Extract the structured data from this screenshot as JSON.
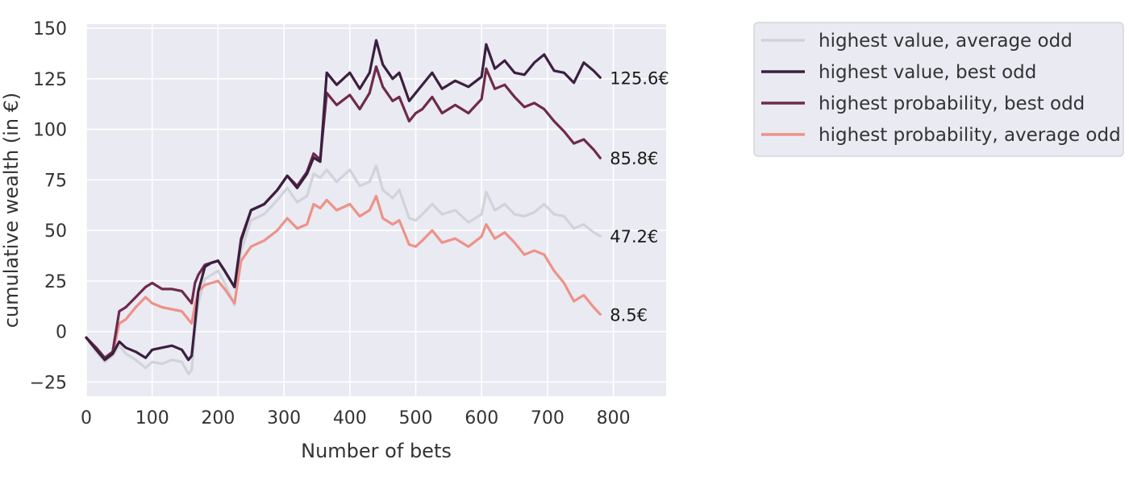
{
  "chart_data": {
    "type": "line",
    "xlabel": "Number of bets",
    "ylabel": "cumulative wealth (in €)",
    "xlim": [
      0,
      880
    ],
    "ylim": [
      -32,
      152
    ],
    "xticks": [
      "0",
      "100",
      "200",
      "300",
      "400",
      "500",
      "600",
      "700",
      "800"
    ],
    "yticks": [
      "−25",
      "0",
      "25",
      "50",
      "75",
      "100",
      "125",
      "150"
    ],
    "grid": true,
    "background": "#eaeaf2",
    "legend_position": "right",
    "series": [
      {
        "name": "highest value, average odd",
        "color": "#d2d3da",
        "end_label": "47.2€",
        "points": [
          [
            0,
            -3
          ],
          [
            15,
            -10
          ],
          [
            28,
            -15
          ],
          [
            40,
            -12
          ],
          [
            50,
            -7
          ],
          [
            60,
            -11
          ],
          [
            75,
            -14
          ],
          [
            90,
            -18
          ],
          [
            100,
            -15
          ],
          [
            115,
            -16
          ],
          [
            130,
            -14
          ],
          [
            145,
            -15
          ],
          [
            155,
            -21
          ],
          [
            160,
            -19
          ],
          [
            165,
            0
          ],
          [
            170,
            14
          ],
          [
            180,
            26
          ],
          [
            190,
            28
          ],
          [
            200,
            30
          ],
          [
            210,
            24
          ],
          [
            225,
            13
          ],
          [
            235,
            40
          ],
          [
            250,
            55
          ],
          [
            270,
            58
          ],
          [
            290,
            65
          ],
          [
            305,
            71
          ],
          [
            320,
            64
          ],
          [
            335,
            67
          ],
          [
            345,
            78
          ],
          [
            355,
            76
          ],
          [
            365,
            80
          ],
          [
            380,
            74
          ],
          [
            400,
            80
          ],
          [
            415,
            72
          ],
          [
            430,
            74
          ],
          [
            440,
            82
          ],
          [
            450,
            70
          ],
          [
            465,
            66
          ],
          [
            475,
            70
          ],
          [
            490,
            56
          ],
          [
            500,
            55
          ],
          [
            510,
            58
          ],
          [
            525,
            63
          ],
          [
            540,
            58
          ],
          [
            560,
            60
          ],
          [
            580,
            54
          ],
          [
            600,
            58
          ],
          [
            607,
            69
          ],
          [
            620,
            60
          ],
          [
            635,
            63
          ],
          [
            650,
            58
          ],
          [
            665,
            57
          ],
          [
            680,
            59
          ],
          [
            695,
            63
          ],
          [
            710,
            58
          ],
          [
            725,
            57
          ],
          [
            740,
            51
          ],
          [
            755,
            53
          ],
          [
            770,
            49
          ],
          [
            780,
            47.2
          ]
        ]
      },
      {
        "name": "highest value, best odd",
        "color": "#3b1f3f",
        "end_label": "125.6€",
        "points": [
          [
            0,
            -3
          ],
          [
            15,
            -9
          ],
          [
            28,
            -14
          ],
          [
            40,
            -11
          ],
          [
            50,
            -5
          ],
          [
            60,
            -8
          ],
          [
            75,
            -10
          ],
          [
            90,
            -13
          ],
          [
            100,
            -9
          ],
          [
            115,
            -8
          ],
          [
            130,
            -7
          ],
          [
            145,
            -9
          ],
          [
            155,
            -14
          ],
          [
            160,
            -12
          ],
          [
            165,
            4
          ],
          [
            170,
            20
          ],
          [
            180,
            32
          ],
          [
            190,
            34
          ],
          [
            200,
            35
          ],
          [
            210,
            30
          ],
          [
            225,
            22
          ],
          [
            235,
            45
          ],
          [
            250,
            60
          ],
          [
            270,
            63
          ],
          [
            290,
            70
          ],
          [
            305,
            77
          ],
          [
            320,
            71
          ],
          [
            335,
            78
          ],
          [
            345,
            86
          ],
          [
            355,
            84
          ],
          [
            365,
            128
          ],
          [
            380,
            122
          ],
          [
            400,
            128
          ],
          [
            415,
            120
          ],
          [
            430,
            128
          ],
          [
            440,
            144
          ],
          [
            450,
            132
          ],
          [
            465,
            125
          ],
          [
            475,
            128
          ],
          [
            490,
            114
          ],
          [
            500,
            118
          ],
          [
            510,
            122
          ],
          [
            525,
            128
          ],
          [
            540,
            120
          ],
          [
            560,
            124
          ],
          [
            580,
            121
          ],
          [
            600,
            126
          ],
          [
            607,
            142
          ],
          [
            620,
            130
          ],
          [
            635,
            134
          ],
          [
            650,
            128
          ],
          [
            665,
            127
          ],
          [
            680,
            133
          ],
          [
            695,
            137
          ],
          [
            710,
            129
          ],
          [
            725,
            128
          ],
          [
            740,
            123
          ],
          [
            755,
            133
          ],
          [
            770,
            129
          ],
          [
            780,
            125.6
          ]
        ]
      },
      {
        "name": "highest probability, best odd",
        "color": "#6e2a4d",
        "end_label": "85.8€",
        "points": [
          [
            0,
            -3
          ],
          [
            15,
            -8
          ],
          [
            28,
            -13
          ],
          [
            40,
            -10
          ],
          [
            50,
            10
          ],
          [
            60,
            12
          ],
          [
            75,
            17
          ],
          [
            90,
            22
          ],
          [
            100,
            24
          ],
          [
            115,
            21
          ],
          [
            130,
            21
          ],
          [
            145,
            20
          ],
          [
            155,
            16
          ],
          [
            160,
            14
          ],
          [
            165,
            24
          ],
          [
            170,
            28
          ],
          [
            180,
            33
          ],
          [
            190,
            34
          ],
          [
            200,
            35
          ],
          [
            210,
            30
          ],
          [
            225,
            22
          ],
          [
            235,
            46
          ],
          [
            250,
            60
          ],
          [
            270,
            63
          ],
          [
            290,
            70
          ],
          [
            305,
            77
          ],
          [
            320,
            72
          ],
          [
            335,
            79
          ],
          [
            345,
            88
          ],
          [
            355,
            85
          ],
          [
            365,
            118
          ],
          [
            380,
            112
          ],
          [
            400,
            117
          ],
          [
            415,
            110
          ],
          [
            430,
            118
          ],
          [
            440,
            131
          ],
          [
            450,
            121
          ],
          [
            465,
            114
          ],
          [
            475,
            116
          ],
          [
            490,
            104
          ],
          [
            500,
            108
          ],
          [
            510,
            110
          ],
          [
            525,
            116
          ],
          [
            540,
            108
          ],
          [
            560,
            112
          ],
          [
            580,
            108
          ],
          [
            600,
            115
          ],
          [
            607,
            130
          ],
          [
            620,
            120
          ],
          [
            635,
            122
          ],
          [
            650,
            116
          ],
          [
            665,
            111
          ],
          [
            680,
            113
          ],
          [
            695,
            110
          ],
          [
            710,
            104
          ],
          [
            725,
            99
          ],
          [
            740,
            93
          ],
          [
            755,
            95
          ],
          [
            770,
            90
          ],
          [
            780,
            85.8
          ]
        ]
      },
      {
        "name": "highest probability, average odd",
        "color": "#ed9288",
        "end_label": "8.5€",
        "points": [
          [
            0,
            -3
          ],
          [
            15,
            -9
          ],
          [
            28,
            -14
          ],
          [
            40,
            -11
          ],
          [
            50,
            4
          ],
          [
            60,
            6
          ],
          [
            75,
            12
          ],
          [
            90,
            17
          ],
          [
            100,
            14
          ],
          [
            115,
            12
          ],
          [
            130,
            11
          ],
          [
            145,
            10
          ],
          [
            155,
            6
          ],
          [
            160,
            4
          ],
          [
            165,
            13
          ],
          [
            170,
            20
          ],
          [
            180,
            23
          ],
          [
            190,
            24
          ],
          [
            200,
            25
          ],
          [
            210,
            21
          ],
          [
            225,
            14
          ],
          [
            235,
            35
          ],
          [
            250,
            42
          ],
          [
            270,
            45
          ],
          [
            290,
            50
          ],
          [
            305,
            56
          ],
          [
            320,
            51
          ],
          [
            335,
            53
          ],
          [
            345,
            63
          ],
          [
            355,
            61
          ],
          [
            365,
            65
          ],
          [
            380,
            60
          ],
          [
            400,
            63
          ],
          [
            415,
            57
          ],
          [
            430,
            60
          ],
          [
            440,
            67
          ],
          [
            450,
            56
          ],
          [
            465,
            53
          ],
          [
            475,
            55
          ],
          [
            490,
            43
          ],
          [
            500,
            42
          ],
          [
            510,
            45
          ],
          [
            525,
            50
          ],
          [
            540,
            44
          ],
          [
            560,
            46
          ],
          [
            580,
            42
          ],
          [
            600,
            47
          ],
          [
            607,
            53
          ],
          [
            620,
            46
          ],
          [
            635,
            49
          ],
          [
            650,
            44
          ],
          [
            665,
            38
          ],
          [
            680,
            40
          ],
          [
            695,
            38
          ],
          [
            710,
            30
          ],
          [
            725,
            24
          ],
          [
            740,
            15
          ],
          [
            755,
            18
          ],
          [
            770,
            12
          ],
          [
            780,
            8.5
          ]
        ]
      }
    ],
    "draw_order": [
      0,
      3,
      2,
      1
    ]
  }
}
